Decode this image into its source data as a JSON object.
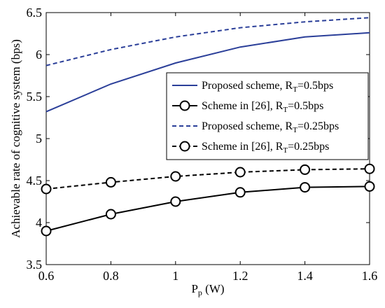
{
  "chart_data": {
    "type": "line",
    "xlabel": "P",
    "xlabel_sub": "p",
    "xlabel_unit": " (W)",
    "ylabel": "Achievable rate of cognitive system (bps)",
    "xlim": [
      0.6,
      1.6
    ],
    "ylim": [
      3.5,
      6.5
    ],
    "x_ticks": [
      "0.6",
      "0.8",
      "1",
      "1.2",
      "1.4",
      "1.6"
    ],
    "y_ticks": [
      "3.5",
      "4",
      "4.5",
      "5",
      "5.5",
      "6",
      "6.5"
    ],
    "x_tick_values": [
      0.6,
      0.8,
      1.0,
      1.2,
      1.4,
      1.6
    ],
    "y_tick_values": [
      3.5,
      4.0,
      4.5,
      5.0,
      5.5,
      6.0,
      6.5
    ],
    "grid": false,
    "legend_position": "top-right",
    "x": [
      0.6,
      0.8,
      1.0,
      1.2,
      1.4,
      1.6
    ],
    "series": [
      {
        "name": "Proposed scheme, R_T=0.5bps",
        "legend_main": "Proposed scheme, R",
        "legend_sub": "T",
        "legend_tail": "=0.5bps",
        "values": [
          5.32,
          5.65,
          5.9,
          6.09,
          6.21,
          6.26
        ],
        "color": "#2b3f99",
        "dash": "solid",
        "marker": "none"
      },
      {
        "name": "Scheme in [26], R_T=0.5bps",
        "legend_main": "Scheme in [26], R",
        "legend_sub": "T",
        "legend_tail": "=0.5bps",
        "values": [
          3.9,
          4.1,
          4.25,
          4.36,
          4.42,
          4.43
        ],
        "color": "#000000",
        "dash": "solid",
        "marker": "circle"
      },
      {
        "name": "Proposed scheme, R_T=0.25bps",
        "legend_main": "Proposed scheme, R",
        "legend_sub": "T",
        "legend_tail": "=0.25bps",
        "values": [
          5.87,
          6.06,
          6.21,
          6.32,
          6.39,
          6.44
        ],
        "color": "#2b3f99",
        "dash": "dashed",
        "marker": "none"
      },
      {
        "name": "Scheme in [26], R_T=0.25bps",
        "legend_main": "Scheme in [26], R",
        "legend_sub": "T",
        "legend_tail": "=0.25bps",
        "values": [
          4.4,
          4.48,
          4.55,
          4.6,
          4.63,
          4.64
        ],
        "color": "#000000",
        "dash": "dashed",
        "marker": "circle"
      }
    ]
  }
}
